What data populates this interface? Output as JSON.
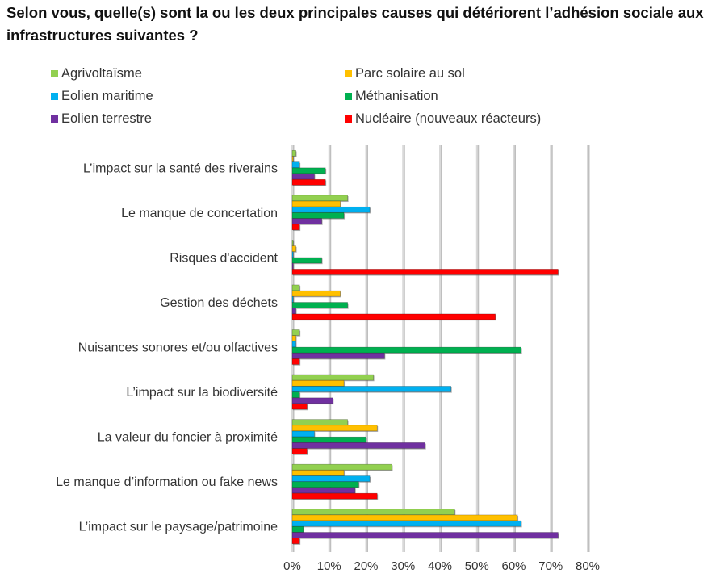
{
  "title": "Selon vous, quelle(s) sont la ou les deux principales causes qui détériorent l’adhésion sociale aux infrastructures suivantes ?",
  "chart_data": {
    "type": "bar",
    "orientation": "horizontal",
    "title": "Selon vous, quelle(s) sont la ou les deux principales causes qui détériorent l’adhésion sociale aux infrastructures suivantes ?",
    "categories": [
      "L’impact sur la santé des riverains",
      "Le manque de concertation",
      "Risques d'accident",
      "Gestion des déchets",
      "Nuisances sonores et/ou olfactives",
      "L’impact sur la biodiversité",
      "La valeur du foncier à proximité",
      "Le manque d’information ou fake news",
      "L’impact sur le paysage/patrimoine"
    ],
    "series": [
      {
        "name": "Agrivoltaïsme",
        "color": "#92d050",
        "values": [
          1,
          15,
          0,
          2,
          2,
          22,
          15,
          27,
          44
        ]
      },
      {
        "name": "Parc solaire au sol",
        "color": "#ffc000",
        "values": [
          0,
          13,
          1,
          13,
          1,
          14,
          23,
          14,
          61
        ]
      },
      {
        "name": "Eolien maritime",
        "color": "#00b0f0",
        "values": [
          2,
          21,
          0,
          0,
          1,
          43,
          6,
          21,
          62
        ]
      },
      {
        "name": "Méthanisation",
        "color": "#00b050",
        "values": [
          9,
          14,
          8,
          15,
          62,
          2,
          20,
          18,
          3
        ]
      },
      {
        "name": "Eolien terrestre",
        "color": "#7030a0",
        "values": [
          6,
          8,
          0,
          1,
          25,
          11,
          36,
          17,
          72
        ]
      },
      {
        "name": "Nucléaire (nouveaux réacteurs)",
        "color": "#ff0000",
        "values": [
          9,
          2,
          72,
          55,
          2,
          4,
          4,
          23,
          2
        ]
      }
    ],
    "xlim": [
      0,
      80
    ],
    "x_ticks": [
      "0%",
      "10%",
      "20%",
      "30%",
      "40%",
      "50%",
      "60%",
      "70%",
      "80%"
    ],
    "grid": true,
    "legend_position": "top"
  }
}
